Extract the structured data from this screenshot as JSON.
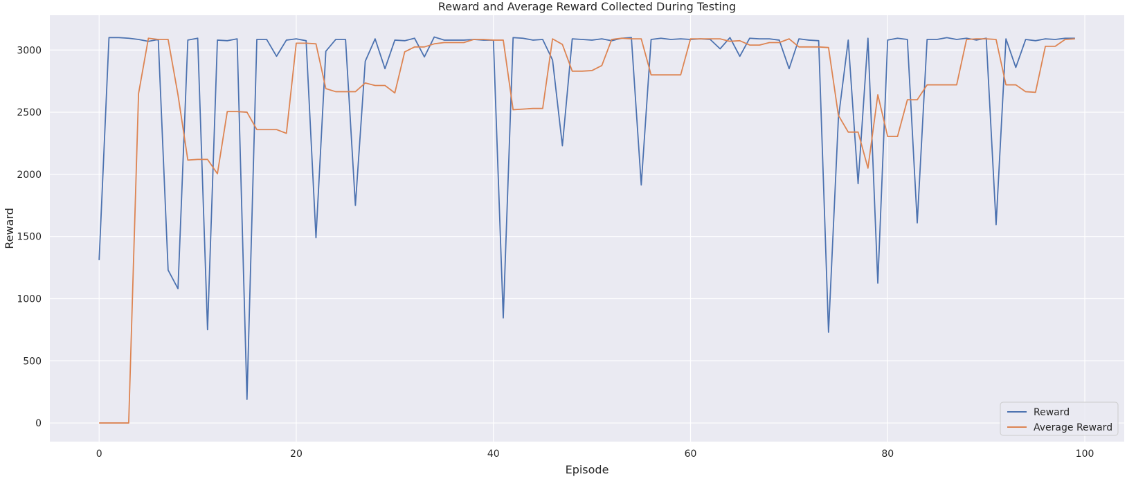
{
  "chart_data": {
    "type": "line",
    "title": "Reward and Average Reward Collected During Testing",
    "xlabel": "Episode",
    "ylabel": "Reward",
    "xlim": [
      -5,
      104
    ],
    "ylim": [
      -150,
      3280
    ],
    "xticks": [
      0,
      20,
      40,
      60,
      80,
      100
    ],
    "yticks": [
      0,
      500,
      1000,
      1500,
      2000,
      2500,
      3000
    ],
    "grid": true,
    "legend_position": "lower-right",
    "background_color": "#EAEAF2",
    "grid_color": "#FFFFFF",
    "x": [
      0,
      1,
      2,
      3,
      4,
      5,
      6,
      7,
      8,
      9,
      10,
      11,
      12,
      13,
      14,
      15,
      16,
      17,
      18,
      19,
      20,
      21,
      22,
      23,
      24,
      25,
      26,
      27,
      28,
      29,
      30,
      31,
      32,
      33,
      34,
      35,
      36,
      37,
      38,
      39,
      40,
      41,
      42,
      43,
      44,
      45,
      46,
      47,
      48,
      49,
      50,
      51,
      52,
      53,
      54,
      55,
      56,
      57,
      58,
      59,
      60,
      61,
      62,
      63,
      64,
      65,
      66,
      67,
      68,
      69,
      70,
      71,
      72,
      73,
      74,
      75,
      76,
      77,
      78,
      79,
      80,
      81,
      82,
      83,
      84,
      85,
      86,
      87,
      88,
      89,
      90,
      91,
      92,
      93,
      94,
      95,
      96,
      97,
      98,
      99
    ],
    "series": [
      {
        "name": "Reward",
        "color": "#4C72B0",
        "values": [
          1310,
          3100,
          3100,
          3095,
          3085,
          3070,
          3085,
          1230,
          1080,
          3080,
          3095,
          750,
          3080,
          3075,
          3090,
          190,
          3085,
          3085,
          2950,
          3080,
          3090,
          3075,
          1490,
          2990,
          3085,
          3085,
          1750,
          2910,
          3090,
          2850,
          3080,
          3075,
          3095,
          2945,
          3105,
          3080,
          3080,
          3080,
          3085,
          3080,
          3080,
          845,
          3100,
          3095,
          3080,
          3085,
          2920,
          2230,
          3090,
          3085,
          3080,
          3090,
          3075,
          3095,
          3100,
          1915,
          3085,
          3095,
          3085,
          3090,
          3085,
          3090,
          3085,
          3010,
          3100,
          2950,
          3095,
          3090,
          3090,
          3080,
          2850,
          3090,
          3080,
          3075,
          730,
          2450,
          3080,
          1925,
          3095,
          1125,
          3080,
          3095,
          3085,
          1610,
          3085,
          3085,
          3100,
          3085,
          3095,
          3080,
          3095,
          1595,
          3090,
          2860,
          3085,
          3075,
          3090,
          3085,
          3095,
          3095
        ]
      },
      {
        "name": "Average Reward",
        "color": "#DD8452",
        "values": [
          0,
          0,
          0,
          0,
          2650,
          3095,
          3085,
          3085,
          2640,
          2115,
          2120,
          2120,
          2005,
          2505,
          2505,
          2500,
          2360,
          2360,
          2360,
          2330,
          3055,
          3055,
          3050,
          2690,
          2665,
          2665,
          2665,
          2735,
          2715,
          2715,
          2655,
          2985,
          3025,
          3025,
          3050,
          3060,
          3060,
          3060,
          3085,
          3085,
          3080,
          3080,
          2520,
          2525,
          2530,
          2530,
          3090,
          3045,
          2830,
          2830,
          2835,
          2875,
          3085,
          3095,
          3090,
          3090,
          2800,
          2800,
          2800,
          2800,
          3090,
          3090,
          3090,
          3090,
          3070,
          3075,
          3040,
          3040,
          3060,
          3060,
          3090,
          3025,
          3025,
          3025,
          3020,
          2475,
          2340,
          2340,
          2050,
          2640,
          2305,
          2305,
          2600,
          2600,
          2720,
          2720,
          2720,
          2720,
          3085,
          3090,
          3090,
          3085,
          2720,
          2720,
          2665,
          2660,
          3030,
          3030,
          3085,
          3090
        ]
      }
    ]
  }
}
